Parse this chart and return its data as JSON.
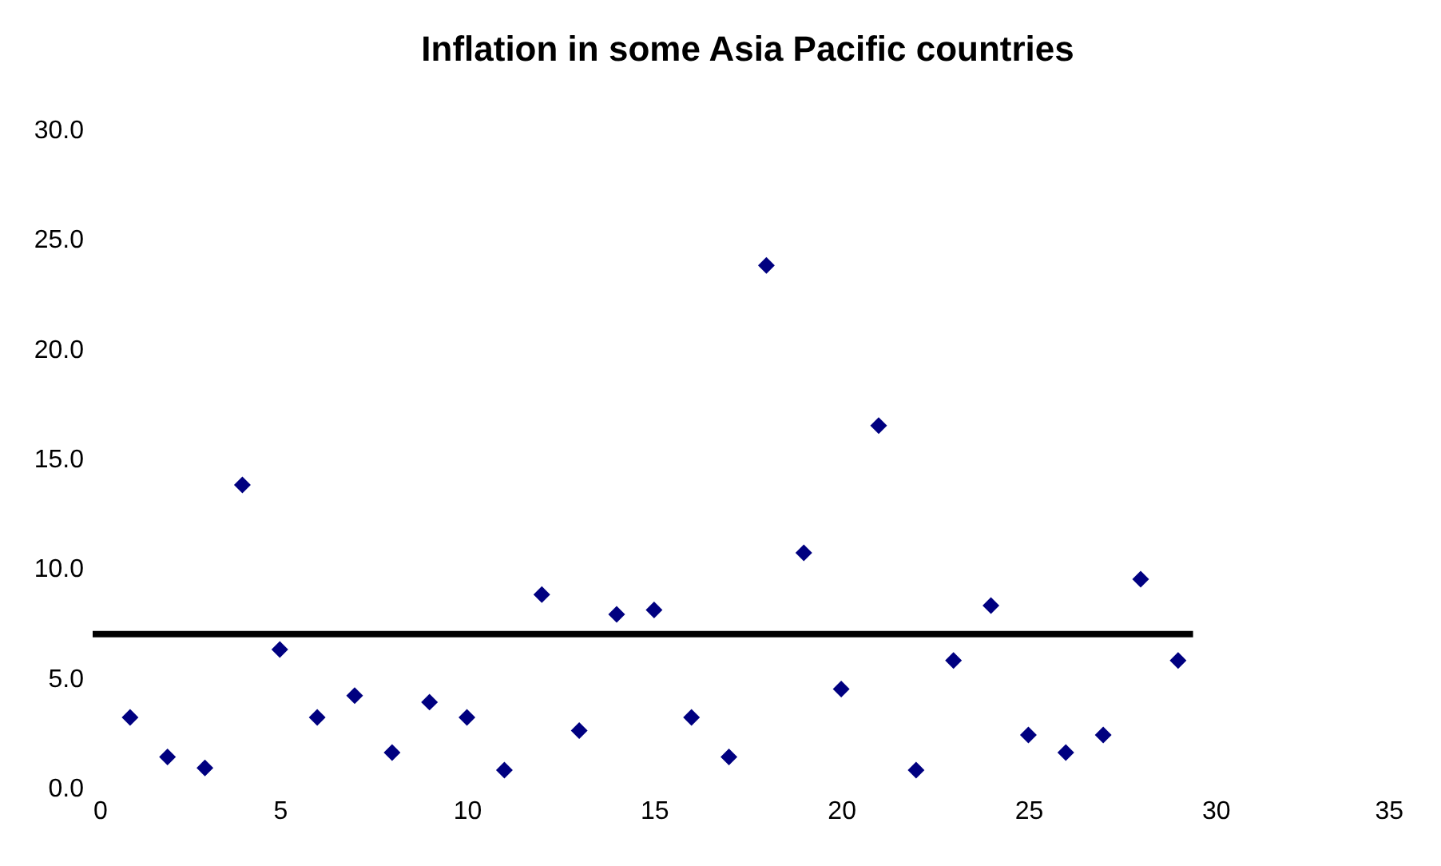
{
  "chart_data": {
    "type": "scatter",
    "title": "Inflation in some Asia Pacific countries",
    "grid": false,
    "xlim": [
      0,
      35
    ],
    "xticks": [
      0,
      5,
      10,
      15,
      20,
      25,
      30,
      35
    ],
    "ylim": [
      0,
      30
    ],
    "yticks": [
      {
        "value": 0,
        "label": "0.0"
      },
      {
        "value": 5,
        "label": "5.0"
      },
      {
        "value": 10,
        "label": "10.0"
      },
      {
        "value": 15,
        "label": "15.0"
      },
      {
        "value": 20,
        "label": "20.0"
      },
      {
        "value": 25,
        "label": "25.0"
      },
      {
        "value": 30,
        "label": "30.0"
      }
    ],
    "series": [
      {
        "marker": "diamond",
        "color": "#000080",
        "x": [
          1,
          2,
          3,
          4,
          5,
          6,
          7,
          8,
          9,
          10,
          11,
          12,
          13,
          14,
          15,
          16,
          17,
          18,
          19,
          20,
          21,
          22,
          23,
          24,
          25,
          26,
          27,
          28,
          29
        ],
        "values": [
          3.2,
          1.4,
          0.9,
          13.8,
          6.3,
          3.2,
          4.2,
          1.6,
          3.9,
          3.2,
          0.8,
          8.8,
          2.6,
          7.9,
          8.1,
          3.2,
          1.4,
          23.8,
          10.7,
          4.5,
          16.5,
          0.8,
          5.8,
          8.3,
          2.4,
          1.6,
          2.4,
          9.5,
          5.8
        ]
      },
      {
        "type": "line",
        "marker": "none",
        "color": "#000000",
        "line_style": "solid",
        "x": [
          0,
          29.4
        ],
        "values": [
          7.0,
          7.0
        ]
      }
    ]
  }
}
